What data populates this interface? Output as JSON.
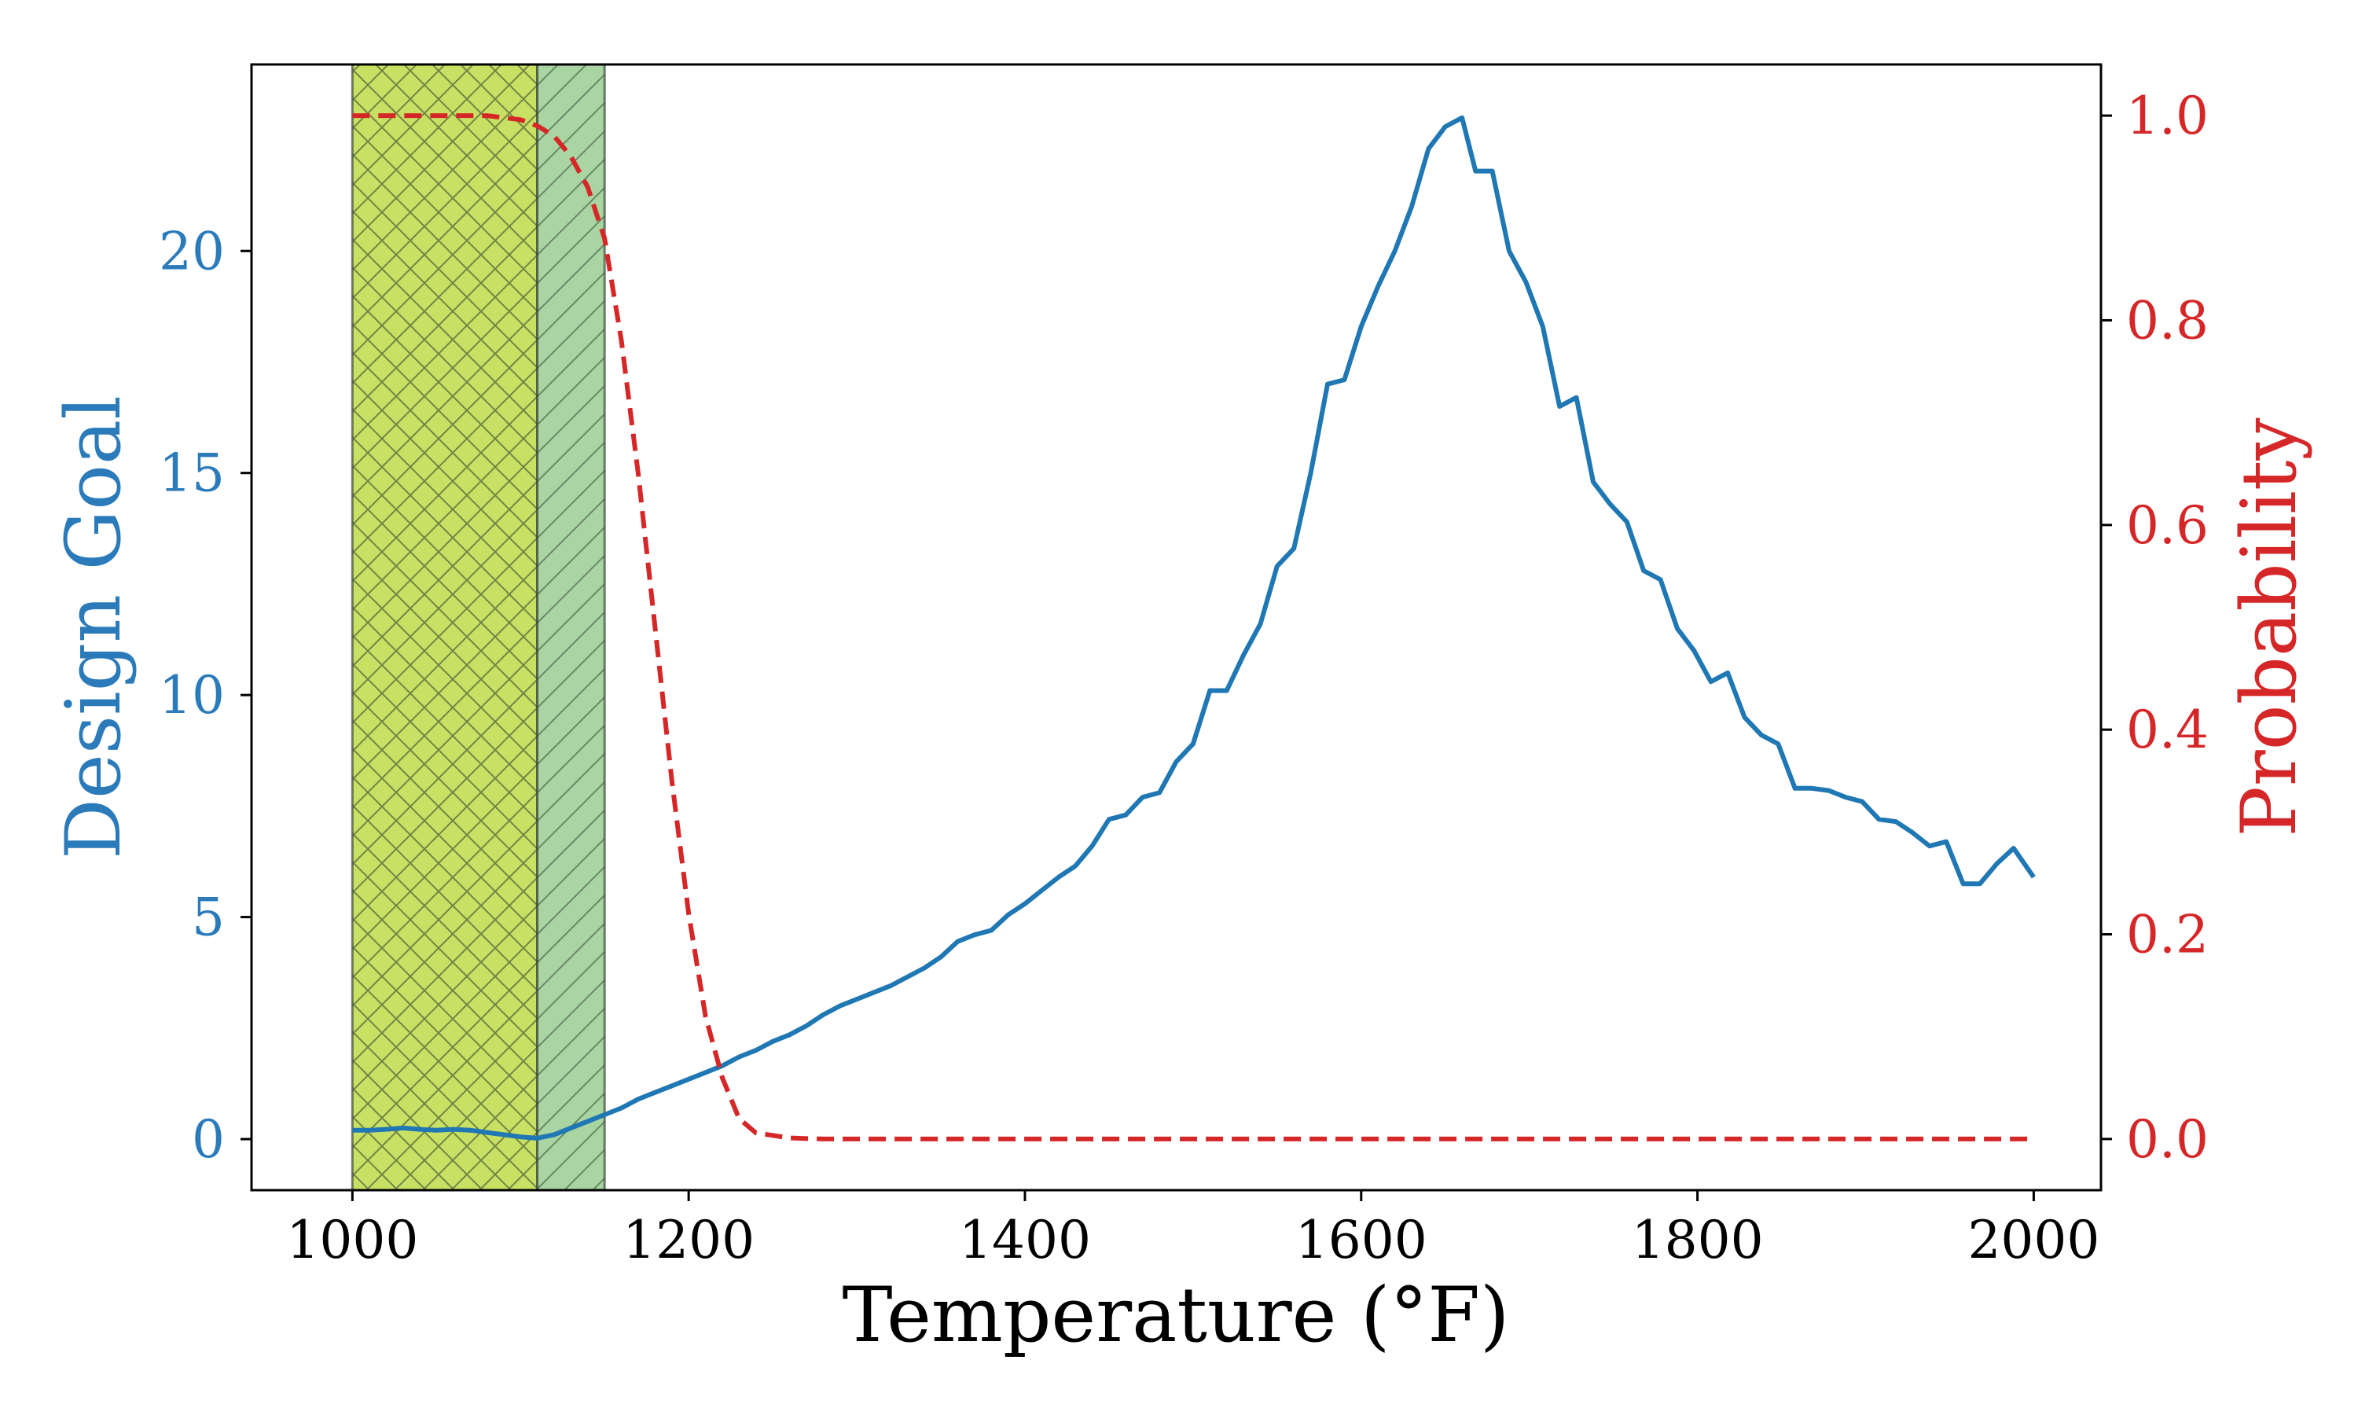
{
  "chart_data": {
    "type": "line",
    "title": "",
    "xlabel": "Temperature (°F)",
    "ylabel": "Design Goal",
    "y2label": "Probability",
    "xlim": [
      940,
      2040
    ],
    "ylim": [
      -1.15,
      24.2
    ],
    "y2lim": [
      -0.05,
      1.05
    ],
    "xticks": [
      1000,
      1200,
      1400,
      1600,
      1800,
      2000
    ],
    "yticks": [
      0,
      5,
      10,
      15,
      20
    ],
    "y2ticks": [
      0.0,
      0.2,
      0.4,
      0.6,
      0.8,
      1.0
    ],
    "xtick_labels": [
      "1000",
      "1200",
      "1400",
      "1600",
      "1800",
      "2000"
    ],
    "ytick_labels": [
      "0",
      "5",
      "10",
      "15",
      "20"
    ],
    "y2tick_labels": [
      "0.0",
      "0.2",
      "0.4",
      "0.6",
      "0.8",
      "1.0"
    ],
    "shaded_regions": [
      {
        "name": "cross-hatched-region",
        "x0": 1000,
        "x1": 1110,
        "color": "#c8e063",
        "hatch": "crosshatch"
      },
      {
        "name": "diagonal-hatched-region",
        "x0": 1110,
        "x1": 1150,
        "color": "#a9d5a2",
        "hatch": "diagonal"
      }
    ],
    "series": [
      {
        "name": "Design Goal",
        "axis": "left",
        "color": "#1f77b4",
        "style": "solid",
        "x": [
          1000,
          1010,
          1020,
          1030,
          1040,
          1050,
          1060,
          1070,
          1080,
          1090,
          1100,
          1110,
          1120,
          1130,
          1140,
          1150,
          1160,
          1170,
          1180,
          1190,
          1200,
          1210,
          1220,
          1230,
          1240,
          1250,
          1260,
          1270,
          1280,
          1290,
          1300,
          1310,
          1320,
          1330,
          1340,
          1350,
          1360,
          1370,
          1380,
          1390,
          1400,
          1410,
          1420,
          1430,
          1440,
          1450,
          1460,
          1470,
          1480,
          1490,
          1500,
          1510,
          1520,
          1530,
          1540,
          1550,
          1560,
          1570,
          1580,
          1590,
          1600,
          1610,
          1620,
          1630,
          1640,
          1650,
          1660,
          1668,
          1678,
          1688,
          1698,
          1708,
          1718,
          1728,
          1738,
          1748,
          1758,
          1768,
          1778,
          1788,
          1798,
          1808,
          1818,
          1828,
          1838,
          1848,
          1858,
          1868,
          1878,
          1888,
          1898,
          1908,
          1918,
          1928,
          1938,
          1948,
          1958,
          1968,
          1978,
          1988,
          2000
        ],
        "values": [
          0.2,
          0.2,
          0.22,
          0.25,
          0.22,
          0.2,
          0.22,
          0.2,
          0.15,
          0.1,
          0.05,
          0.02,
          0.1,
          0.25,
          0.4,
          0.55,
          0.7,
          0.9,
          1.05,
          1.2,
          1.35,
          1.5,
          1.65,
          1.85,
          2.0,
          2.2,
          2.35,
          2.55,
          2.8,
          3.0,
          3.15,
          3.3,
          3.45,
          3.65,
          3.85,
          4.1,
          4.45,
          4.6,
          4.7,
          5.05,
          5.3,
          5.6,
          5.9,
          6.15,
          6.6,
          7.2,
          7.3,
          7.7,
          7.8,
          8.5,
          8.9,
          10.1,
          10.1,
          10.9,
          11.6,
          12.9,
          13.3,
          15.0,
          17.0,
          17.1,
          18.3,
          19.2,
          20.0,
          21.0,
          22.3,
          22.8,
          23.0,
          21.8,
          21.8,
          20.0,
          19.3,
          18.3,
          16.5,
          16.7,
          14.8,
          14.3,
          13.9,
          12.8,
          12.6,
          11.5,
          11.0,
          10.3,
          10.5,
          9.5,
          9.1,
          8.9,
          7.9,
          7.9,
          7.85,
          7.7,
          7.6,
          7.2,
          7.15,
          6.9,
          6.6,
          6.7,
          5.75,
          5.75,
          6.2,
          6.55,
          5.9
        ]
      },
      {
        "name": "Probability",
        "axis": "right",
        "color": "#d62728",
        "style": "dashed",
        "x": [
          1000,
          1020,
          1040,
          1060,
          1080,
          1090,
          1100,
          1110,
          1120,
          1130,
          1140,
          1150,
          1160,
          1170,
          1180,
          1190,
          1200,
          1210,
          1220,
          1230,
          1240,
          1260,
          1280,
          1300,
          1400,
          1600,
          1800,
          2000
        ],
        "values": [
          1.0,
          1.0,
          1.0,
          1.0,
          1.0,
          0.998,
          0.996,
          0.99,
          0.98,
          0.96,
          0.93,
          0.88,
          0.78,
          0.65,
          0.5,
          0.35,
          0.22,
          0.12,
          0.06,
          0.02,
          0.006,
          0.001,
          0.0,
          0.0,
          0.0,
          0.0,
          0.0,
          0.0
        ]
      }
    ]
  },
  "colors": {
    "left_axis": "#2b7bba",
    "right_axis": "#d62728",
    "frame": "#000000"
  }
}
